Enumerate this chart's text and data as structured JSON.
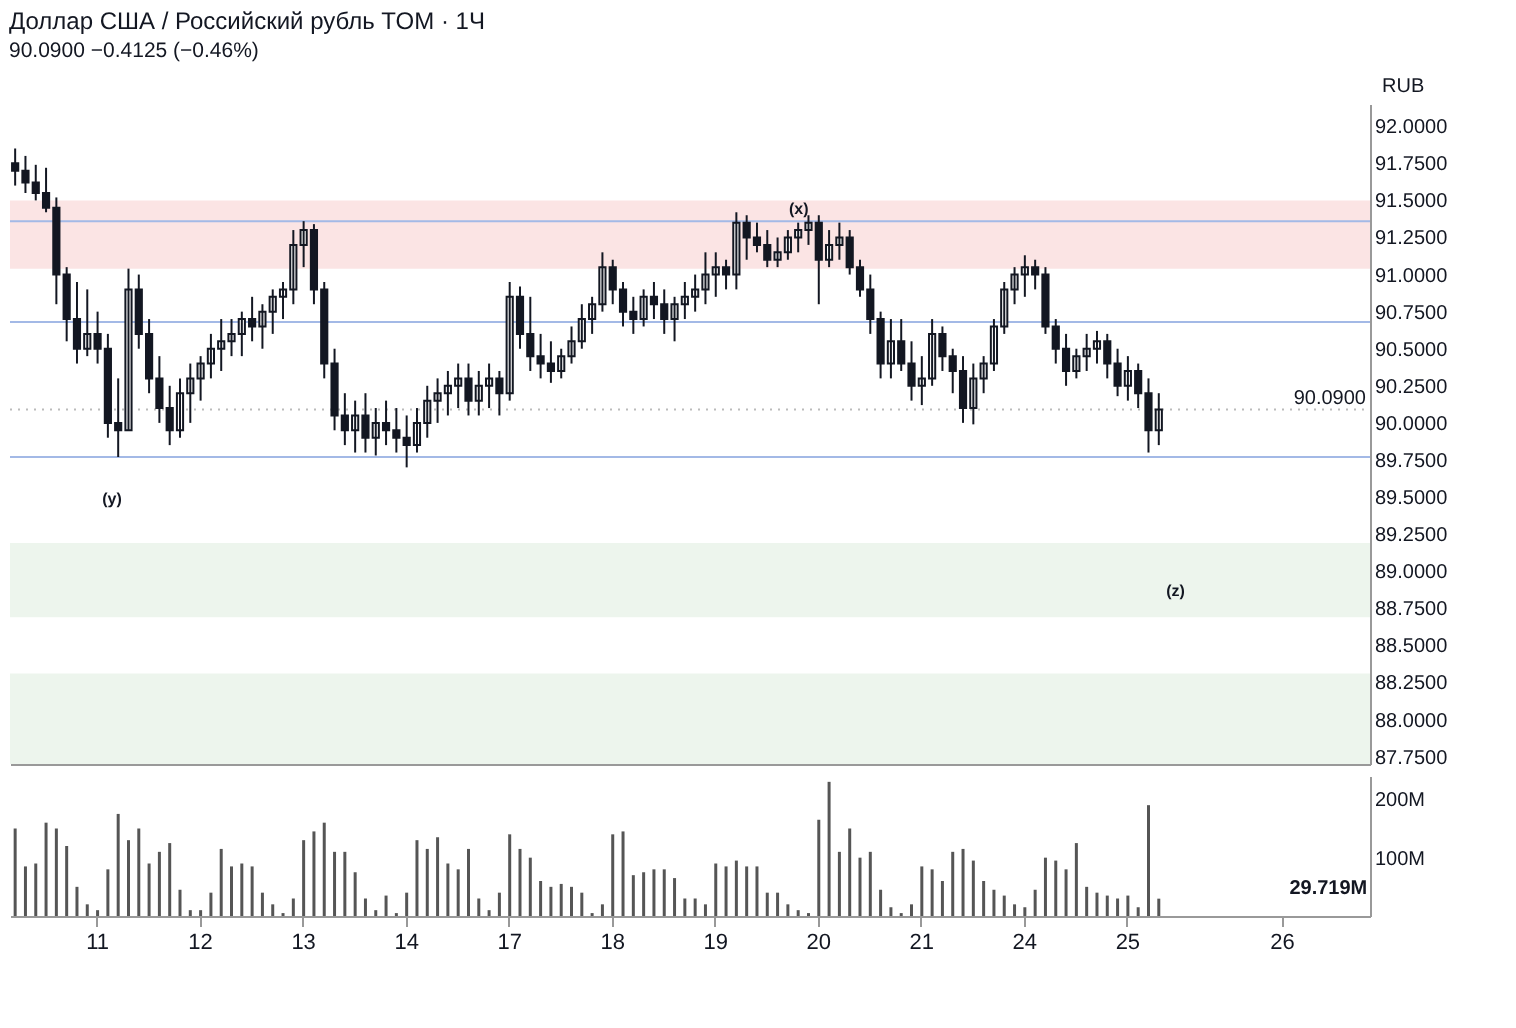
{
  "chart_data": [
    {
      "type": "candlestick",
      "title": "Доллар США / Российский рубль TOM · 1Ч",
      "subtitle": "90.0900 −0.4125 (−0.46%)",
      "ylabel": "RUB",
      "color": "#131722",
      "categories": [
        null,
        null,
        null,
        null,
        null,
        null,
        null,
        null,
        "11",
        null,
        null,
        null,
        null,
        null,
        null,
        null,
        null,
        null,
        "12",
        null,
        null,
        null,
        null,
        null,
        null,
        null,
        null,
        null,
        "13",
        null,
        null,
        null,
        null,
        null,
        null,
        null,
        null,
        null,
        "14",
        null,
        null,
        null,
        null,
        null,
        null,
        null,
        null,
        null,
        "17",
        null,
        null,
        null,
        null,
        null,
        null,
        null,
        null,
        null,
        "18",
        null,
        null,
        null,
        null,
        null,
        null,
        null,
        null,
        null,
        "19",
        null,
        null,
        null,
        null,
        null,
        null,
        null,
        null,
        null,
        "20",
        null,
        null,
        null,
        null,
        null,
        null,
        null,
        null,
        null,
        "21",
        null,
        null,
        null,
        null,
        null,
        null,
        null,
        null,
        null,
        "24",
        null,
        null,
        null,
        null,
        null,
        null,
        null,
        null,
        null,
        "25",
        null,
        null,
        null,
        null,
        null,
        null,
        null,
        null,
        null,
        null,
        null,
        null,
        null,
        null,
        "26",
        null,
        null,
        null,
        null,
        null,
        null,
        null,
        null
      ],
      "ohlc": [
        [
          91.75,
          91.85,
          91.6,
          91.7
        ],
        [
          91.7,
          91.8,
          91.55,
          91.62
        ],
        [
          91.62,
          91.74,
          91.5,
          91.55
        ],
        [
          91.55,
          91.72,
          91.42,
          91.45
        ],
        [
          91.45,
          91.52,
          90.8,
          91.0
        ],
        [
          91.0,
          91.05,
          90.55,
          90.7
        ],
        [
          90.7,
          90.95,
          90.4,
          90.5
        ],
        [
          90.5,
          90.9,
          90.45,
          90.6
        ],
        [
          90.6,
          90.75,
          90.4,
          90.5
        ],
        [
          90.5,
          90.6,
          89.9,
          90.0
        ],
        [
          90.0,
          90.3,
          89.77,
          89.95
        ],
        [
          89.95,
          91.04,
          89.95,
          90.9
        ],
        [
          90.9,
          91.0,
          90.5,
          90.6
        ],
        [
          90.6,
          90.7,
          90.2,
          90.3
        ],
        [
          90.3,
          90.45,
          90.0,
          90.1
        ],
        [
          90.1,
          90.25,
          89.85,
          89.95
        ],
        [
          89.95,
          90.3,
          89.9,
          90.2
        ],
        [
          90.2,
          90.4,
          90.0,
          90.3
        ],
        [
          90.3,
          90.45,
          90.15,
          90.4
        ],
        [
          90.4,
          90.6,
          90.3,
          90.5
        ],
        [
          90.5,
          90.7,
          90.35,
          90.55
        ],
        [
          90.55,
          90.7,
          90.45,
          90.6
        ],
        [
          90.6,
          90.75,
          90.45,
          90.7
        ],
        [
          90.7,
          90.85,
          90.55,
          90.65
        ],
        [
          90.65,
          90.8,
          90.5,
          90.75
        ],
        [
          90.75,
          90.9,
          90.6,
          90.85
        ],
        [
          90.85,
          90.95,
          90.7,
          90.9
        ],
        [
          90.9,
          91.3,
          90.8,
          91.2
        ],
        [
          91.2,
          91.36,
          91.05,
          91.3
        ],
        [
          91.3,
          91.34,
          90.8,
          90.9
        ],
        [
          90.9,
          90.95,
          90.3,
          90.4
        ],
        [
          90.4,
          90.5,
          89.95,
          90.05
        ],
        [
          90.05,
          90.2,
          89.85,
          89.95
        ],
        [
          89.95,
          90.15,
          89.8,
          90.05
        ],
        [
          90.05,
          90.2,
          89.8,
          89.9
        ],
        [
          89.9,
          90.1,
          89.78,
          90.0
        ],
        [
          90.0,
          90.15,
          89.85,
          89.95
        ],
        [
          89.95,
          90.1,
          89.8,
          89.9
        ],
        [
          89.9,
          90.05,
          89.7,
          89.85
        ],
        [
          89.85,
          90.1,
          89.8,
          90.0
        ],
        [
          90.0,
          90.25,
          89.9,
          90.15
        ],
        [
          90.15,
          90.3,
          90.0,
          90.2
        ],
        [
          90.2,
          90.35,
          90.05,
          90.25
        ],
        [
          90.25,
          90.4,
          90.1,
          90.3
        ],
        [
          90.3,
          90.4,
          90.05,
          90.15
        ],
        [
          90.15,
          90.35,
          90.05,
          90.25
        ],
        [
          90.25,
          90.4,
          90.1,
          90.3
        ],
        [
          90.3,
          90.35,
          90.05,
          90.2
        ],
        [
          90.2,
          90.95,
          90.15,
          90.85
        ],
        [
          90.85,
          90.92,
          90.5,
          90.6
        ],
        [
          90.6,
          90.85,
          90.35,
          90.45
        ],
        [
          90.45,
          90.6,
          90.3,
          90.4
        ],
        [
          90.4,
          90.55,
          90.27,
          90.35
        ],
        [
          90.35,
          90.5,
          90.3,
          90.45
        ],
        [
          90.45,
          90.65,
          90.4,
          90.55
        ],
        [
          90.55,
          90.8,
          90.5,
          90.7
        ],
        [
          90.7,
          90.85,
          90.6,
          90.8
        ],
        [
          90.8,
          91.15,
          90.75,
          91.05
        ],
        [
          91.05,
          91.1,
          90.8,
          90.9
        ],
        [
          90.9,
          90.95,
          90.65,
          90.75
        ],
        [
          90.75,
          90.85,
          90.6,
          90.7
        ],
        [
          90.7,
          90.9,
          90.65,
          90.85
        ],
        [
          90.85,
          90.95,
          90.7,
          90.8
        ],
        [
          90.8,
          90.9,
          90.6,
          90.7
        ],
        [
          90.7,
          90.85,
          90.55,
          90.8
        ],
        [
          90.8,
          90.95,
          90.7,
          90.85
        ],
        [
          90.85,
          91.0,
          90.75,
          90.9
        ],
        [
          90.9,
          91.15,
          90.8,
          91.0
        ],
        [
          91.0,
          91.15,
          90.85,
          91.05
        ],
        [
          91.05,
          91.1,
          90.9,
          91.0
        ],
        [
          91.0,
          91.42,
          90.9,
          91.35
        ],
        [
          91.35,
          91.4,
          91.1,
          91.25
        ],
        [
          91.25,
          91.35,
          91.15,
          91.2
        ],
        [
          91.2,
          91.3,
          91.05,
          91.1
        ],
        [
          91.1,
          91.25,
          91.05,
          91.15
        ],
        [
          91.15,
          91.3,
          91.1,
          91.25
        ],
        [
          91.25,
          91.35,
          91.15,
          91.3
        ],
        [
          91.3,
          91.4,
          91.2,
          91.35
        ],
        [
          91.35,
          91.4,
          90.8,
          91.1
        ],
        [
          91.1,
          91.3,
          91.05,
          91.2
        ],
        [
          91.2,
          91.35,
          91.1,
          91.25
        ],
        [
          91.25,
          91.3,
          91.0,
          91.05
        ],
        [
          91.05,
          91.1,
          90.85,
          90.9
        ],
        [
          90.9,
          91.0,
          90.6,
          90.7
        ],
        [
          90.7,
          90.75,
          90.3,
          90.4
        ],
        [
          90.4,
          90.7,
          90.3,
          90.55
        ],
        [
          90.55,
          90.7,
          90.35,
          90.4
        ],
        [
          90.4,
          90.55,
          90.15,
          90.25
        ],
        [
          90.25,
          90.45,
          90.12,
          90.3
        ],
        [
          90.3,
          90.7,
          90.25,
          90.6
        ],
        [
          90.6,
          90.65,
          90.35,
          90.45
        ],
        [
          90.45,
          90.5,
          90.2,
          90.35
        ],
        [
          90.35,
          90.45,
          90.0,
          90.1
        ],
        [
          90.1,
          90.4,
          89.99,
          90.3
        ],
        [
          90.3,
          90.45,
          90.2,
          90.4
        ],
        [
          90.4,
          90.7,
          90.35,
          90.65
        ],
        [
          90.65,
          90.95,
          90.6,
          90.9
        ],
        [
          90.9,
          91.05,
          90.8,
          91.0
        ],
        [
          91.0,
          91.13,
          90.85,
          91.05
        ],
        [
          91.05,
          91.1,
          90.9,
          91.0
        ],
        [
          91.0,
          91.05,
          90.6,
          90.65
        ],
        [
          90.65,
          90.7,
          90.4,
          90.5
        ],
        [
          90.5,
          90.6,
          90.25,
          90.35
        ],
        [
          90.35,
          90.5,
          90.3,
          90.45
        ],
        [
          90.45,
          90.6,
          90.35,
          90.5
        ],
        [
          90.5,
          90.62,
          90.4,
          90.55
        ],
        [
          90.55,
          90.6,
          90.3,
          90.4
        ],
        [
          90.4,
          90.5,
          90.18,
          90.25
        ],
        [
          90.25,
          90.45,
          90.15,
          90.35
        ],
        [
          90.35,
          90.4,
          90.1,
          90.2
        ],
        [
          90.2,
          90.3,
          89.8,
          89.95
        ],
        [
          89.95,
          90.2,
          89.85,
          90.09
        ],
        null,
        null,
        null,
        null,
        null,
        null,
        null,
        null,
        null,
        null,
        null,
        null,
        null,
        null,
        null,
        null,
        null,
        null,
        null,
        null
      ],
      "ylim": [
        87.7,
        92.15
      ],
      "yticks": [
        {
          "value": 87.75,
          "label": "87.7500"
        },
        {
          "value": 88.0,
          "label": "88.0000"
        },
        {
          "value": 88.25,
          "label": "88.2500"
        },
        {
          "value": 88.5,
          "label": "88.5000"
        },
        {
          "value": 88.75,
          "label": "88.7500"
        },
        {
          "value": 89.0,
          "label": "89.0000"
        },
        {
          "value": 89.25,
          "label": "89.2500"
        },
        {
          "value": 89.5,
          "label": "89.5000"
        },
        {
          "value": 89.75,
          "label": "89.7500"
        },
        {
          "value": 90.0,
          "label": "90.0000"
        },
        {
          "value": 90.25,
          "label": "90.2500"
        },
        {
          "value": 90.5,
          "label": "90.5000"
        },
        {
          "value": 90.75,
          "label": "90.7500"
        },
        {
          "value": 91.0,
          "label": "91.0000"
        },
        {
          "value": 91.25,
          "label": "91.2500"
        },
        {
          "value": 91.5,
          "label": "91.5000"
        },
        {
          "value": 91.75,
          "label": "91.7500"
        },
        {
          "value": 92.0,
          "label": "92.0000"
        }
      ],
      "bands": [
        {
          "axis": "y",
          "from": 91.04,
          "to": 91.5,
          "color": "#fbe4e4"
        },
        {
          "axis": "y",
          "from": 88.69,
          "to": 89.19,
          "color": "#edf5ed"
        },
        {
          "axis": "y",
          "from": 87.7,
          "to": 88.31,
          "color": "#edf5ed"
        }
      ],
      "ref_lines": [
        {
          "axis": "y",
          "value": 91.36,
          "color": "#a3b9e6"
        },
        {
          "axis": "y",
          "value": 89.77,
          "color": "#a3b9e6"
        },
        {
          "axis": "y",
          "value": 90.68,
          "color": "#a3b9e6"
        },
        {
          "axis": "y",
          "value": 90.09,
          "label": "90.0900",
          "color": "#bbbbbb",
          "line_style": "dotted"
        }
      ],
      "annotations": [
        "(x)",
        "(y)",
        "(z)"
      ],
      "tick_labels": "y"
    },
    {
      "type": "bar",
      "color": "#555555",
      "categories": [
        null,
        null,
        null,
        null,
        null,
        null,
        null,
        null,
        "11",
        null,
        null,
        null,
        null,
        null,
        null,
        null,
        null,
        null,
        "12",
        null,
        null,
        null,
        null,
        null,
        null,
        null,
        null,
        null,
        "13",
        null,
        null,
        null,
        null,
        null,
        null,
        null,
        null,
        null,
        "14",
        null,
        null,
        null,
        null,
        null,
        null,
        null,
        null,
        null,
        "17",
        null,
        null,
        null,
        null,
        null,
        null,
        null,
        null,
        null,
        "18",
        null,
        null,
        null,
        null,
        null,
        null,
        null,
        null,
        null,
        "19",
        null,
        null,
        null,
        null,
        null,
        null,
        null,
        null,
        null,
        "20",
        null,
        null,
        null,
        null,
        null,
        null,
        null,
        null,
        null,
        "21",
        null,
        null,
        null,
        null,
        null,
        null,
        null,
        null,
        null,
        "24",
        null,
        null,
        null,
        null,
        null,
        null,
        null,
        null,
        null,
        "25",
        null,
        null,
        null,
        null,
        null,
        null,
        null,
        null,
        null,
        null,
        null,
        null,
        null,
        null,
        "26",
        null,
        null,
        null,
        null,
        null,
        null,
        null,
        null
      ],
      "values": [
        150,
        85,
        90,
        160,
        150,
        120,
        50,
        20,
        10,
        80,
        175,
        130,
        150,
        90,
        110,
        125,
        45,
        10,
        10,
        40,
        115,
        85,
        90,
        85,
        40,
        20,
        5,
        30,
        130,
        145,
        160,
        110,
        110,
        75,
        30,
        10,
        35,
        5,
        40,
        130,
        115,
        135,
        90,
        80,
        115,
        30,
        10,
        40,
        140,
        115,
        100,
        60,
        50,
        55,
        50,
        40,
        5,
        20,
        140,
        145,
        70,
        75,
        80,
        80,
        65,
        30,
        30,
        20,
        90,
        85,
        95,
        85,
        85,
        40,
        40,
        20,
        10,
        5,
        165,
        230,
        110,
        150,
        100,
        110,
        45,
        15,
        5,
        20,
        85,
        80,
        60,
        110,
        115,
        95,
        60,
        45,
        35,
        20,
        15,
        45,
        100,
        95,
        80,
        125,
        50,
        40,
        35,
        30,
        35,
        15,
        190,
        29.719,
        null,
        null,
        null,
        null,
        null,
        null,
        null,
        null,
        null,
        null,
        null,
        null,
        null,
        null,
        null,
        null,
        null,
        null,
        null,
        null
      ],
      "ylim": [
        0,
        240
      ],
      "yticks": [
        {
          "value": 100,
          "label": "100M"
        },
        {
          "value": 200,
          "label": "200M"
        }
      ],
      "annotations": [
        "29.719M"
      ]
    }
  ]
}
